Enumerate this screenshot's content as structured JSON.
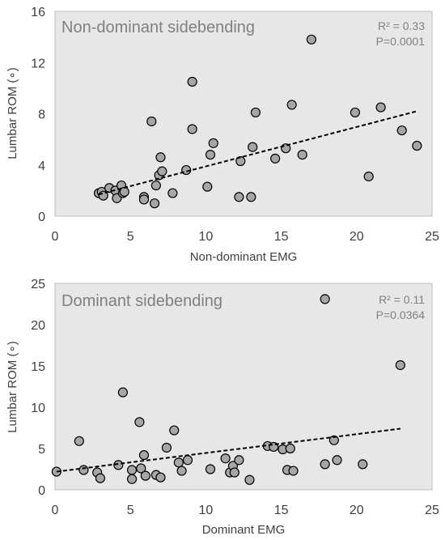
{
  "chart_data": [
    {
      "type": "scatter",
      "title": "Non-dominant sidebending",
      "xlabel": "Non-dominant EMG",
      "ylabel": "Lumbar ROM (∘)",
      "xlim": [
        0,
        25
      ],
      "ylim": [
        0,
        16
      ],
      "xticks": [
        "0",
        "5",
        "10",
        "15",
        "20",
        "25"
      ],
      "yticks": [
        "0",
        "4",
        "8",
        "12",
        "16"
      ],
      "r2_label": "R² = 0.33",
      "p_label": "P=0.0001",
      "trendline": {
        "x": [
          2.9,
          24.0
        ],
        "y": [
          1.7,
          8.2
        ]
      },
      "points": [
        {
          "x": 2.9,
          "y": 1.8
        },
        {
          "x": 3.1,
          "y": 1.9
        },
        {
          "x": 3.2,
          "y": 1.6
        },
        {
          "x": 3.6,
          "y": 2.2
        },
        {
          "x": 4.0,
          "y": 2.0
        },
        {
          "x": 4.1,
          "y": 1.4
        },
        {
          "x": 4.4,
          "y": 2.4
        },
        {
          "x": 4.5,
          "y": 1.8
        },
        {
          "x": 4.6,
          "y": 1.9
        },
        {
          "x": 5.9,
          "y": 1.5
        },
        {
          "x": 5.9,
          "y": 1.3
        },
        {
          "x": 6.4,
          "y": 7.4
        },
        {
          "x": 6.6,
          "y": 1.0
        },
        {
          "x": 6.7,
          "y": 2.4
        },
        {
          "x": 6.9,
          "y": 3.2
        },
        {
          "x": 7.0,
          "y": 4.6
        },
        {
          "x": 7.1,
          "y": 3.5
        },
        {
          "x": 7.8,
          "y": 1.8
        },
        {
          "x": 8.7,
          "y": 3.6
        },
        {
          "x": 9.1,
          "y": 10.5
        },
        {
          "x": 9.1,
          "y": 6.8
        },
        {
          "x": 10.1,
          "y": 2.3
        },
        {
          "x": 10.3,
          "y": 4.8
        },
        {
          "x": 10.5,
          "y": 5.7
        },
        {
          "x": 12.2,
          "y": 1.5
        },
        {
          "x": 12.3,
          "y": 4.3
        },
        {
          "x": 13.0,
          "y": 1.5
        },
        {
          "x": 13.1,
          "y": 5.4
        },
        {
          "x": 13.3,
          "y": 8.1
        },
        {
          "x": 14.6,
          "y": 4.5
        },
        {
          "x": 15.3,
          "y": 5.3
        },
        {
          "x": 15.7,
          "y": 8.7
        },
        {
          "x": 16.4,
          "y": 4.8
        },
        {
          "x": 17.0,
          "y": 13.8
        },
        {
          "x": 19.9,
          "y": 8.1
        },
        {
          "x": 20.8,
          "y": 3.1
        },
        {
          "x": 21.6,
          "y": 8.5
        },
        {
          "x": 23.0,
          "y": 6.7
        },
        {
          "x": 24.0,
          "y": 5.5
        }
      ]
    },
    {
      "type": "scatter",
      "title": "Dominant sidebending",
      "xlabel": "Dominant EMG",
      "ylabel": "Lumbar ROM (∘)",
      "xlim": [
        0,
        25
      ],
      "ylim": [
        0,
        25
      ],
      "xticks": [
        "0",
        "5",
        "10",
        "15",
        "20",
        "25"
      ],
      "yticks": [
        "0",
        "5",
        "10",
        "15",
        "20",
        "25"
      ],
      "r2_label": "R² = 0.11",
      "p_label": "P=0.0364",
      "trendline": {
        "x": [
          0.1,
          22.9
        ],
        "y": [
          2.2,
          7.4
        ]
      },
      "points": [
        {
          "x": 0.1,
          "y": 2.2
        },
        {
          "x": 1.6,
          "y": 5.9
        },
        {
          "x": 1.9,
          "y": 2.4
        },
        {
          "x": 2.8,
          "y": 2.1
        },
        {
          "x": 3.0,
          "y": 1.4
        },
        {
          "x": 4.2,
          "y": 3.0
        },
        {
          "x": 4.5,
          "y": 11.8
        },
        {
          "x": 5.1,
          "y": 2.4
        },
        {
          "x": 5.1,
          "y": 1.3
        },
        {
          "x": 5.6,
          "y": 8.2
        },
        {
          "x": 5.7,
          "y": 2.6
        },
        {
          "x": 5.9,
          "y": 4.2
        },
        {
          "x": 6.0,
          "y": 1.7
        },
        {
          "x": 6.7,
          "y": 1.8
        },
        {
          "x": 7.0,
          "y": 1.5
        },
        {
          "x": 7.4,
          "y": 5.1
        },
        {
          "x": 7.9,
          "y": 7.2
        },
        {
          "x": 8.2,
          "y": 3.3
        },
        {
          "x": 8.4,
          "y": 2.3
        },
        {
          "x": 8.8,
          "y": 3.6
        },
        {
          "x": 10.3,
          "y": 2.5
        },
        {
          "x": 11.3,
          "y": 3.8
        },
        {
          "x": 11.6,
          "y": 2.1
        },
        {
          "x": 11.8,
          "y": 2.9
        },
        {
          "x": 11.9,
          "y": 2.1
        },
        {
          "x": 12.2,
          "y": 3.6
        },
        {
          "x": 12.9,
          "y": 1.2
        },
        {
          "x": 14.1,
          "y": 5.3
        },
        {
          "x": 14.5,
          "y": 5.2
        },
        {
          "x": 15.1,
          "y": 4.9
        },
        {
          "x": 15.4,
          "y": 2.4
        },
        {
          "x": 15.6,
          "y": 5.0
        },
        {
          "x": 15.8,
          "y": 2.3
        },
        {
          "x": 17.9,
          "y": 23.1
        },
        {
          "x": 17.9,
          "y": 3.1
        },
        {
          "x": 18.5,
          "y": 6.0
        },
        {
          "x": 18.7,
          "y": 3.6
        },
        {
          "x": 20.4,
          "y": 3.1
        },
        {
          "x": 22.9,
          "y": 15.1
        }
      ]
    }
  ]
}
